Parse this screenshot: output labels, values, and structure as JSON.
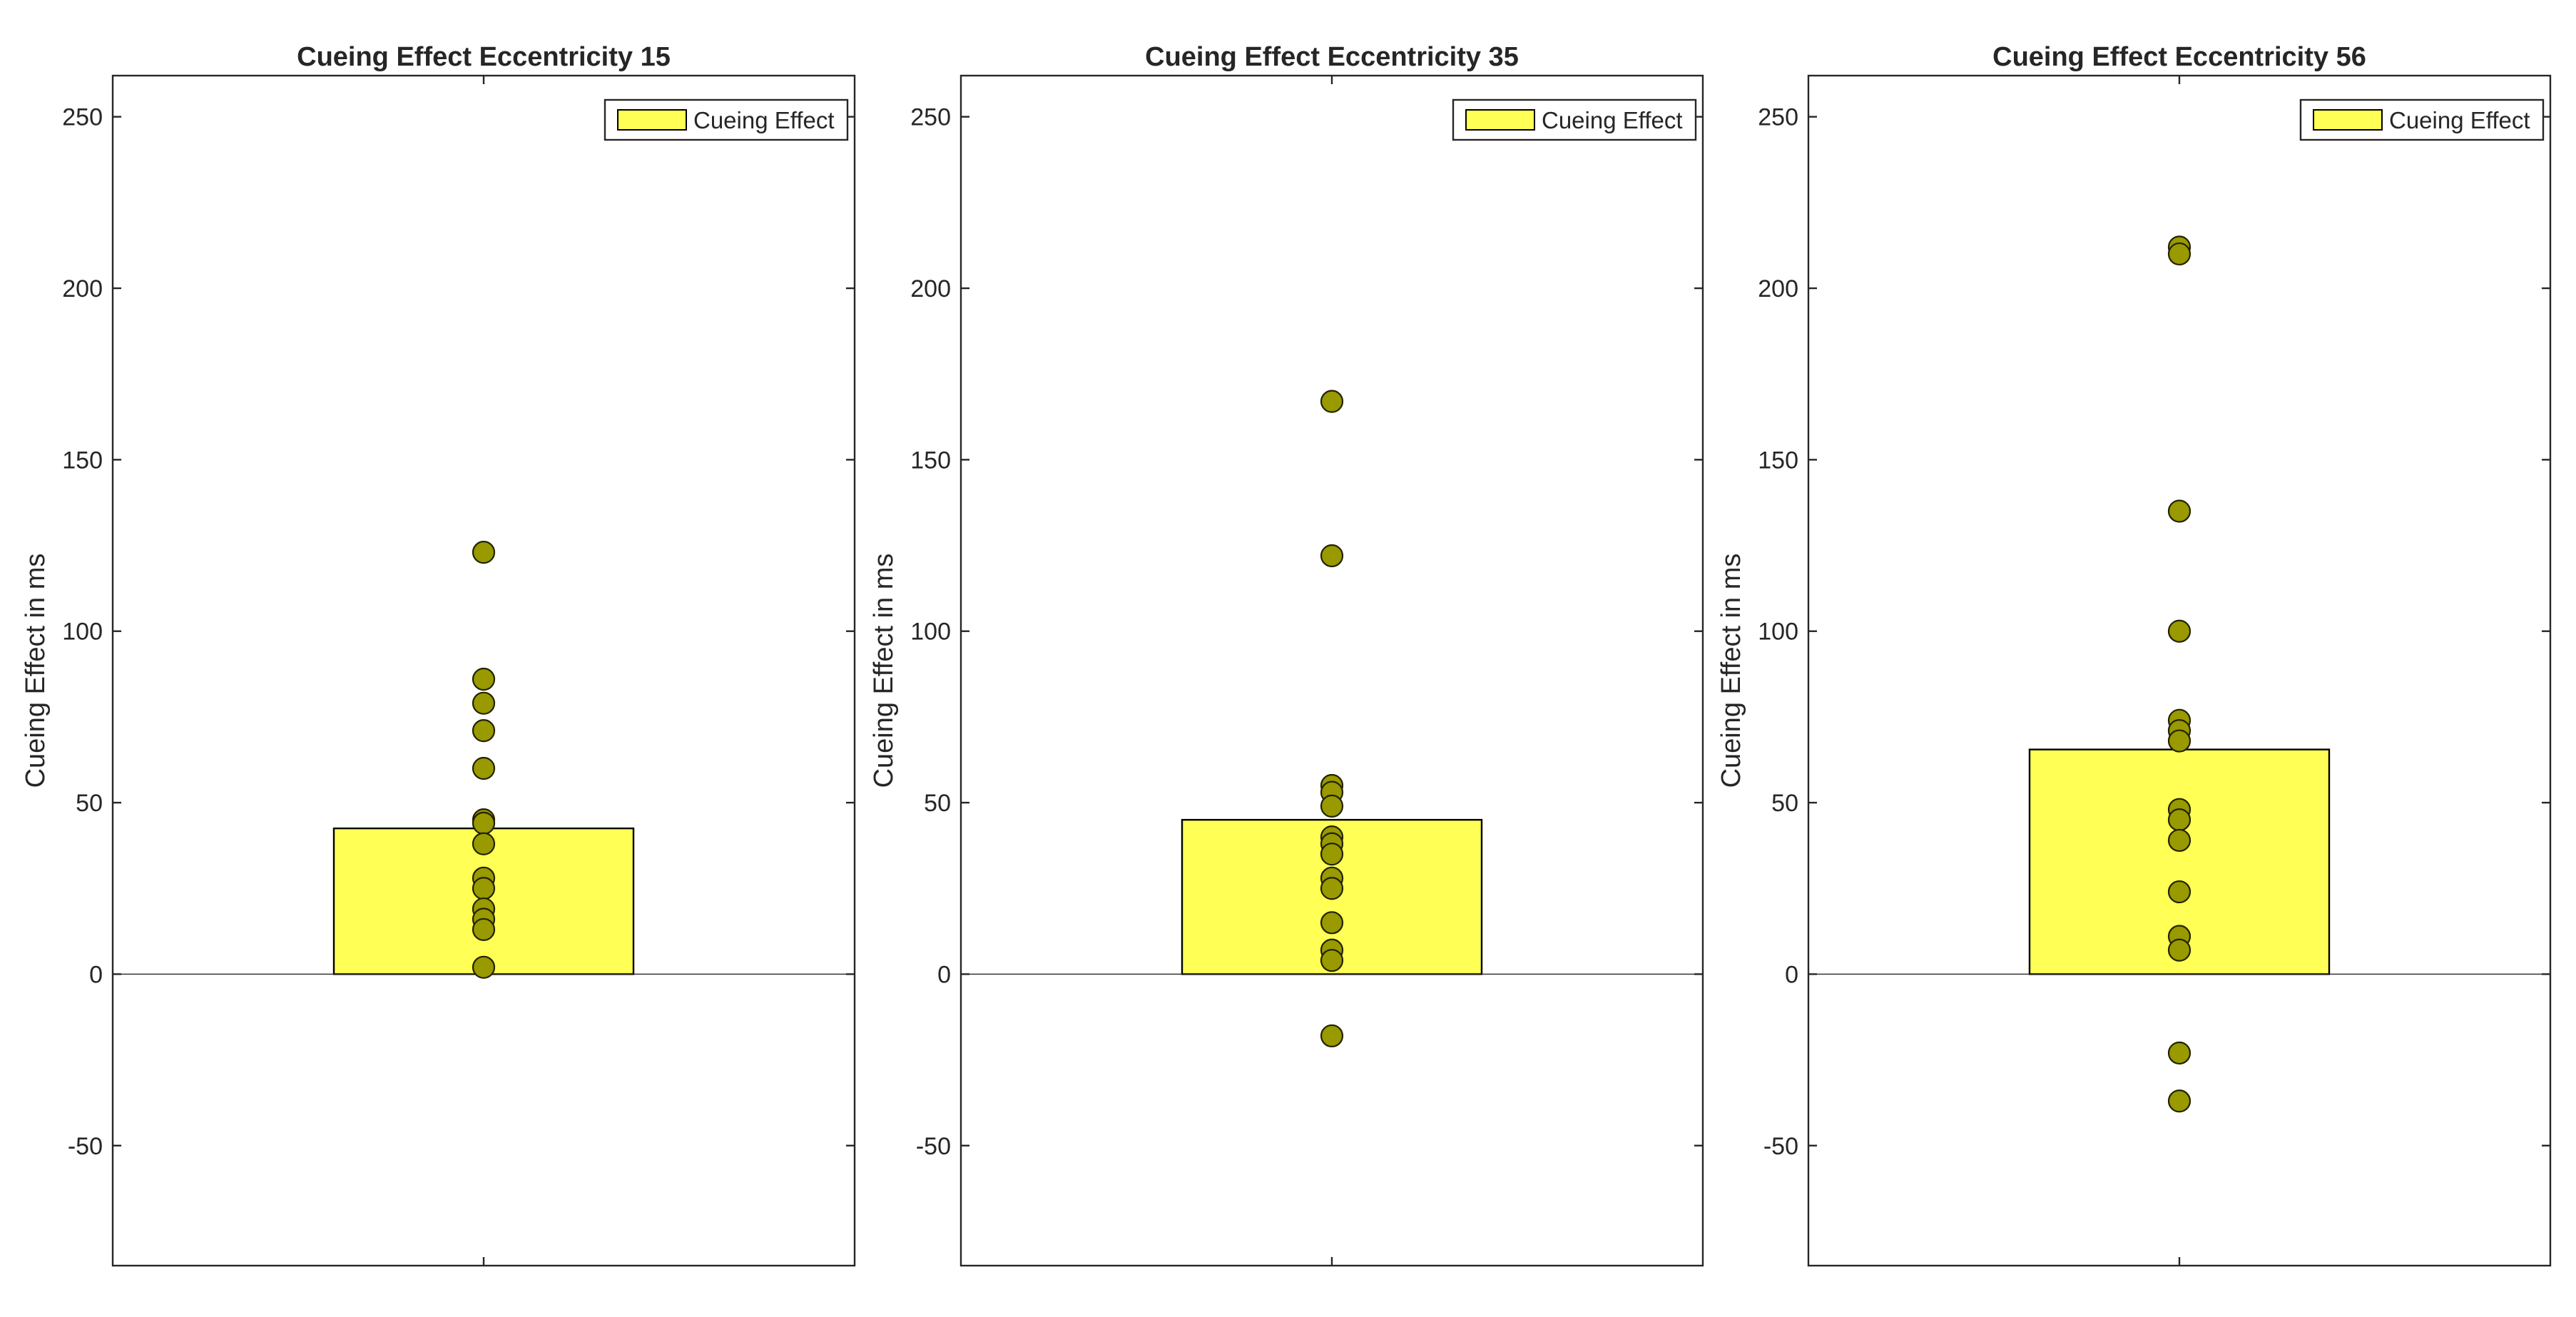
{
  "chart_data": [
    {
      "type": "bar",
      "title": "Cueing Effect Eccentricity 15",
      "ylabel": "Cueing Effect in ms",
      "xlabel": "",
      "ylim": [
        -85,
        262
      ],
      "yticks": [
        -50,
        0,
        50,
        100,
        150,
        200,
        250
      ],
      "bar_value": 42.5,
      "points": [
        123,
        86,
        79,
        71,
        60,
        45,
        44,
        38,
        28,
        25,
        19,
        16,
        13,
        2
      ],
      "legend": {
        "label": "Cueing Effect",
        "position": "top-right"
      }
    },
    {
      "type": "bar",
      "title": "Cueing Effect Eccentricity 35",
      "ylabel": "Cueing Effect in ms",
      "xlabel": "",
      "ylim": [
        -85,
        262
      ],
      "yticks": [
        -50,
        0,
        50,
        100,
        150,
        200,
        250
      ],
      "bar_value": 45,
      "points": [
        167,
        122,
        55,
        53,
        49,
        40,
        38,
        35,
        28,
        25,
        15,
        7,
        4,
        -18
      ],
      "legend": {
        "label": "Cueing Effect",
        "position": "top-right"
      }
    },
    {
      "type": "bar",
      "title": "Cueing Effect Eccentricity 56",
      "ylabel": "Cueing Effect in ms",
      "xlabel": "",
      "ylim": [
        -85,
        262
      ],
      "yticks": [
        -50,
        0,
        50,
        100,
        150,
        200,
        250
      ],
      "bar_value": 65.5,
      "points": [
        212,
        210,
        135,
        100,
        74,
        71,
        68,
        48,
        45,
        39,
        24,
        11,
        7,
        -23,
        -37
      ],
      "legend": {
        "label": "Cueing Effect",
        "position": "top-right"
      }
    }
  ],
  "colors": {
    "bar": "#ffff55",
    "point": "#999900",
    "axis": "#262626"
  }
}
